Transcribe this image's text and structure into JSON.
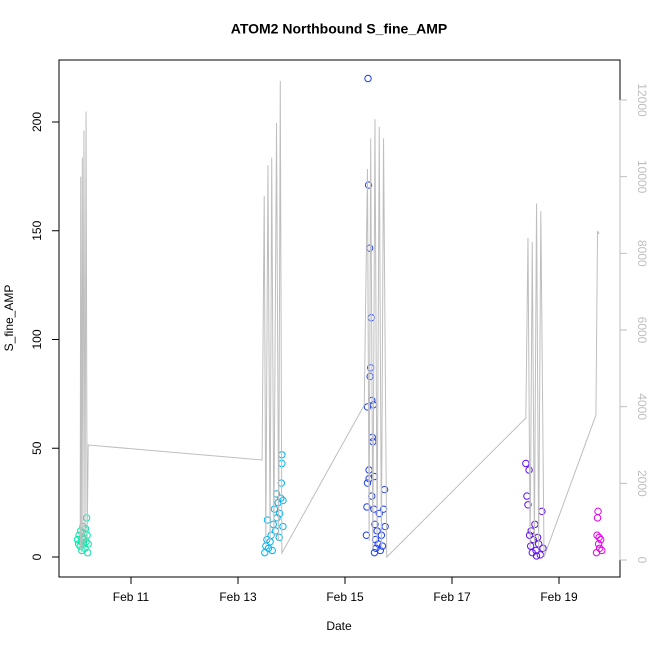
{
  "chart_data": {
    "type": "scatter",
    "title": "ATOM2 Northbound S_fine_AMP",
    "x_label": "Date",
    "y_label": "S_fine_AMP",
    "xlim": [
      9.654,
      20.14
    ],
    "xticks": [
      {
        "value": 11,
        "label": "Feb 11"
      },
      {
        "value": 13,
        "label": "Feb 13"
      },
      {
        "value": 15,
        "label": "Feb 15"
      },
      {
        "value": 17,
        "label": "Feb 17"
      },
      {
        "value": 19,
        "label": "Feb 19"
      }
    ],
    "ylim": [
      -9.2,
      228.5
    ],
    "yticks": [
      0,
      50,
      100,
      150,
      200
    ],
    "y2lim": [
      -443,
      13043
    ],
    "y2ticks": [
      0,
      2000,
      4000,
      6000,
      8000,
      10000,
      12000
    ],
    "series": [
      {
        "color": "#00e8a8",
        "x": [
          10.0,
          10.02,
          10.03,
          10.05,
          10.06,
          10.07,
          10.08,
          10.09,
          10.1,
          10.11,
          10.12,
          10.13,
          10.14,
          10.15,
          10.16,
          10.17,
          10.18,
          10.19,
          10.2,
          10.1
        ],
        "values": [
          8,
          6,
          10,
          5,
          12,
          7,
          3,
          9,
          14,
          6,
          11,
          8,
          4,
          13,
          7,
          18,
          10,
          2,
          6,
          8
        ]
      },
      {
        "color": "#00b4f0",
        "x": [
          13.5,
          13.52,
          13.54,
          13.55,
          13.57,
          13.6,
          13.62,
          13.64,
          13.66,
          13.68,
          13.7,
          13.72,
          13.73,
          13.75,
          13.77,
          13.78,
          13.8,
          13.81,
          13.82,
          13.82,
          13.84,
          13.84
        ],
        "values": [
          2,
          5,
          8,
          17,
          4,
          7,
          10,
          3,
          15,
          22,
          12,
          29,
          18,
          25,
          9,
          20,
          27,
          34,
          43,
          47,
          26,
          14
        ]
      },
      {
        "color": "#2040f0",
        "x": [
          15.4,
          15.41,
          15.42,
          15.42,
          15.43,
          15.44,
          15.45,
          15.46,
          15.47,
          15.48,
          15.49,
          15.5,
          15.51,
          15.52,
          15.53,
          15.54,
          15.55,
          15.56,
          15.57,
          15.58,
          15.6,
          15.62,
          15.64,
          15.66,
          15.68,
          15.7,
          15.72,
          15.74,
          15.75,
          15.5,
          15.45,
          15.55
        ],
        "values": [
          10,
          23,
          34,
          69,
          220,
          171,
          36,
          142,
          83,
          87,
          110,
          72,
          55,
          53,
          70,
          22,
          37,
          15,
          8,
          4,
          12,
          6,
          20,
          3,
          10,
          5,
          22,
          31,
          14,
          28,
          40,
          2
        ]
      },
      {
        "color": "#6010f0",
        "x": [
          18.38,
          18.4,
          18.42,
          18.44,
          18.45,
          18.47,
          18.5,
          18.52,
          18.55,
          18.57,
          18.6,
          18.62,
          18.65,
          18.68,
          18.7,
          18.48,
          18.58
        ],
        "values": [
          43,
          28,
          24,
          40,
          10,
          5,
          2,
          8,
          15,
          3,
          9,
          6,
          1,
          21,
          4,
          12,
          0.5
        ]
      },
      {
        "color": "#e800e8",
        "x": [
          19.7,
          19.71,
          19.72,
          19.73,
          19.74,
          19.75,
          19.76,
          19.78,
          19.8
        ],
        "values": [
          2,
          10,
          18,
          21,
          6,
          9,
          4,
          8,
          3
        ]
      },
      {
        "type": "line",
        "axis": "y2",
        "color": "#bebebe",
        "x": [
          10.05,
          10.06,
          10.07,
          10.09,
          10.1,
          10.12,
          10.14,
          10.16,
          10.18,
          10.2,
          13.45,
          13.49,
          13.52,
          13.56,
          13.6,
          13.63,
          13.67,
          13.72,
          13.76,
          13.79,
          13.82,
          15.36,
          15.42,
          15.45,
          15.48,
          15.52,
          15.56,
          15.6,
          15.64,
          15.68,
          15.72,
          15.78,
          18.38,
          18.42,
          18.46,
          18.5,
          18.54,
          18.58,
          18.62,
          18.66,
          18.72,
          19.69,
          19.72,
          19.75
        ],
        "values": [
          300,
          10000,
          200,
          10500,
          300,
          11200,
          400,
          11700,
          500,
          3000,
          2609,
          9500,
          400,
          10300,
          500,
          10500,
          600,
          11400,
          500,
          12500,
          180,
          4044,
          10200,
          500,
          11000,
          300,
          11500,
          400,
          11300,
          300,
          11000,
          78,
          3705,
          8400,
          300,
          8300,
          400,
          9300,
          300,
          9100,
          78,
          3780,
          8583,
          8500
        ]
      }
    ]
  }
}
